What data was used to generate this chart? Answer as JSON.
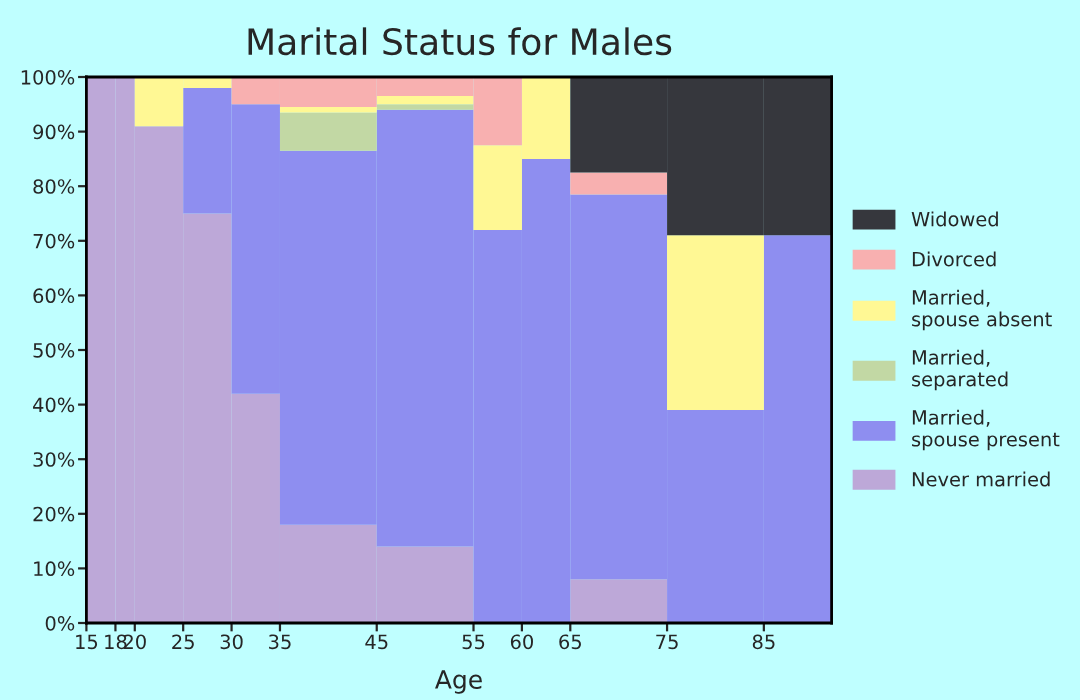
{
  "chart_data": {
    "type": "bar",
    "stacked": true,
    "title": "Marital Status for Males",
    "xlabel": "Age",
    "x": [
      16.5,
      19,
      22.5,
      27.5,
      32.5,
      40,
      50,
      57.5,
      62.5,
      70,
      80,
      88.5
    ],
    "xlim": [
      15,
      92
    ],
    "xticks": [
      15,
      18,
      20,
      25,
      30,
      35,
      45,
      55,
      60,
      65,
      75,
      85
    ],
    "ylim": [
      0,
      100
    ],
    "yticks": [
      {
        "value": 0,
        "label": "0%"
      },
      {
        "value": 10,
        "label": "10%"
      },
      {
        "value": 20,
        "label": "20%"
      },
      {
        "value": 30,
        "label": "30%"
      },
      {
        "value": 40,
        "label": "40%"
      },
      {
        "value": 50,
        "label": "50%"
      },
      {
        "value": 60,
        "label": "60%"
      },
      {
        "value": 70,
        "label": "70%"
      },
      {
        "value": 80,
        "label": "80%"
      },
      {
        "value": 90,
        "label": "90%"
      },
      {
        "value": 100,
        "label": "100%"
      }
    ],
    "legend": "right",
    "series": [
      {
        "name": "Never married",
        "color": "#bda8d8",
        "values": [
          100,
          100,
          91,
          75,
          42,
          18,
          14,
          null,
          null,
          8,
          null,
          null
        ]
      },
      {
        "name": "Married,\nspouse present",
        "color": "#8e8ef0",
        "values": [
          null,
          null,
          null,
          23,
          53,
          68.5,
          80,
          72,
          85,
          70.5,
          39,
          71
        ]
      },
      {
        "name": "Married,\nseparated",
        "color": "#c2d8a4",
        "values": [
          null,
          null,
          null,
          null,
          null,
          7,
          1,
          null,
          null,
          null,
          null,
          null
        ]
      },
      {
        "name": "Married,\nspouse absent",
        "color": "#fff894",
        "values": [
          null,
          null,
          9,
          2,
          null,
          1,
          1.5,
          15.5,
          15,
          null,
          32,
          null
        ]
      },
      {
        "name": "Divorced",
        "color": "#f8b0b0",
        "values": [
          null,
          null,
          null,
          null,
          5,
          5.5,
          3.5,
          12.5,
          null,
          4,
          null,
          null
        ]
      },
      {
        "name": "Widowed",
        "color": "#36373d",
        "values": [
          null,
          null,
          null,
          null,
          null,
          null,
          null,
          null,
          null,
          17.5,
          29,
          29
        ]
      }
    ]
  }
}
